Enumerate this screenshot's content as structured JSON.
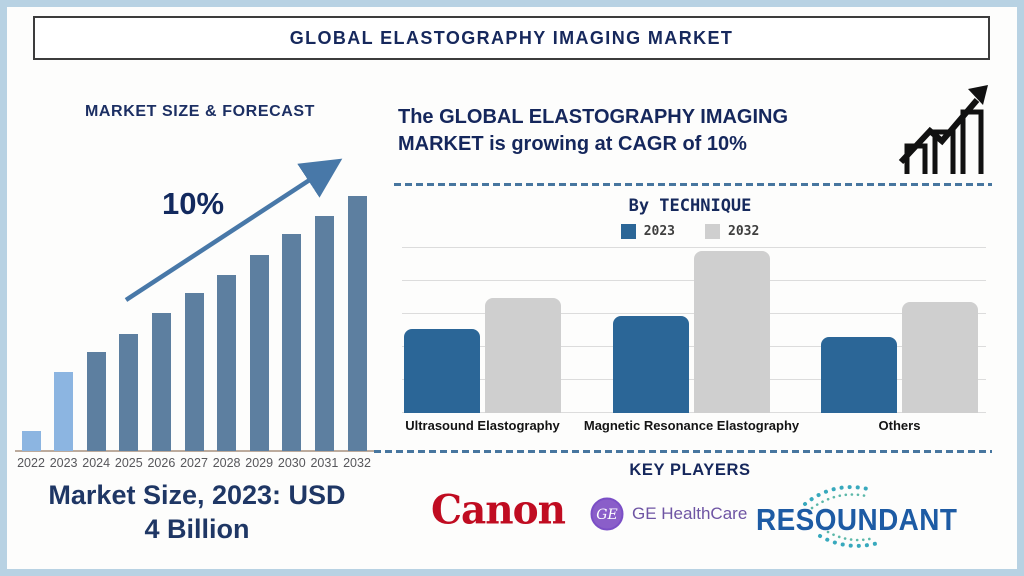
{
  "title": "GLOBAL ELASTOGRAPHY IMAGING MARKET",
  "left_panel": {
    "chart_title": "MARKET SIZE & FORECAST",
    "cagr_label": "10%",
    "market_size_line1": "Market Size, 2023: USD",
    "market_size_line2": "4 Billion"
  },
  "right_panel": {
    "headline": "The GLOBAL ELASTOGRAPHY IMAGING MARKET is growing at CAGR of 10%",
    "technique_title": "By TECHNIQUE",
    "key_players_title": "KEY PLAYERS",
    "ge_monogram": "GE",
    "players": [
      {
        "name": "Canon",
        "color": "#c00c21"
      },
      {
        "name": "GE HealthCare",
        "color": "#6e54a3"
      },
      {
        "name": "RESOUNDANT",
        "color": "#1d5ba4"
      }
    ]
  },
  "colors": {
    "navy_text": "#16285c",
    "frame": "#b8d2e3",
    "arrow": "#4878a8",
    "forecast_bar": "#5d7fa0",
    "forecast_bar_highlight": "#8cb5e1",
    "technique_2023": "#2b6697",
    "technique_2032": "#cfcfcf",
    "dashed_separator": "#47769f",
    "gridline": "#dcdcdc"
  },
  "chart_data": [
    {
      "id": "market-size-forecast",
      "type": "bar",
      "title": "MARKET SIZE & FORECAST",
      "categories": [
        "2022",
        "2023",
        "2024",
        "2025",
        "2026",
        "2027",
        "2028",
        "2029",
        "2030",
        "2031",
        "2032"
      ],
      "values": [
        8,
        31,
        39,
        46,
        54,
        62,
        69,
        77,
        85,
        92,
        100
      ],
      "units": "relative bar height % (no numeric axis shown; 2023 market size = USD 4 Billion, CAGR 10%)",
      "bar_color": "#5d7fa0",
      "highlight_years": [
        "2022",
        "2023"
      ],
      "highlight_color": "#8cb5e1",
      "annotation": "10% growth arrow",
      "xlabel": "",
      "ylabel": "",
      "grid": false
    },
    {
      "id": "by-technique",
      "type": "bar",
      "title": "By TECHNIQUE",
      "categories": [
        "Ultrasound Elastography",
        "Magnetic Resonance Elastography",
        "Others"
      ],
      "series": [
        {
          "name": "2023",
          "color": "#2b6697",
          "values": [
            51,
            59,
            46
          ]
        },
        {
          "name": "2032",
          "color": "#cfcfcf",
          "values": [
            70,
            98,
            67
          ]
        }
      ],
      "units": "relative bar height % (no numeric axis shown)",
      "ylim": [
        0,
        100
      ],
      "grid": true,
      "legend_position": "top"
    }
  ]
}
